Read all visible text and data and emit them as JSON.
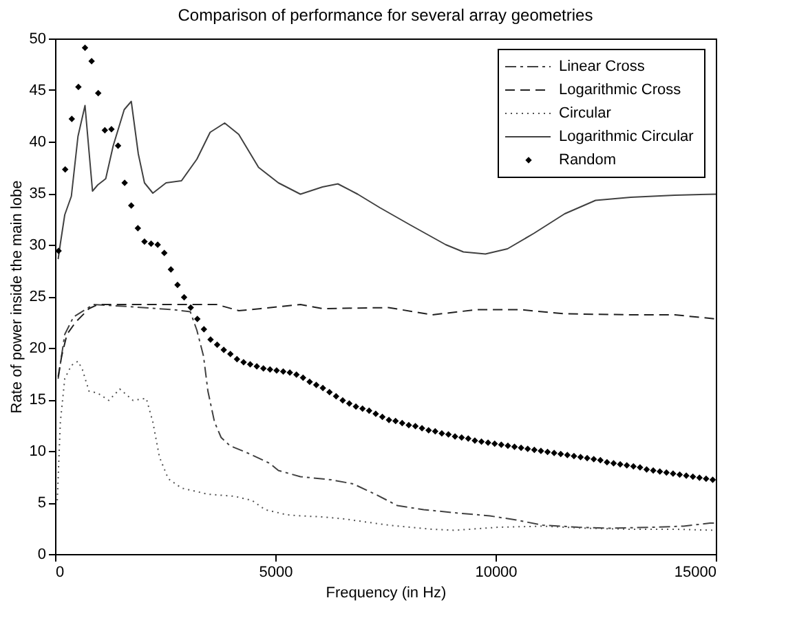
{
  "chart_data": {
    "type": "line",
    "title": "Comparison of performance for several array geometries",
    "xlabel": "Frequency (in Hz)",
    "ylabel": "Rate of power inside the main lobe",
    "xlim": [
      0,
      15000
    ],
    "xticks": [
      0,
      5000,
      10000,
      15000
    ],
    "ylim": [
      0,
      50
    ],
    "yticks": [
      0,
      5,
      10,
      15,
      20,
      25,
      30,
      35,
      40,
      45,
      50
    ],
    "grid": false,
    "legend": "top right",
    "series": [
      {
        "name": "Linear Cross",
        "type": "line",
        "line_style": "dashdot",
        "color": "#404040",
        "x": [
          70,
          220,
          420,
          870,
          1670,
          2670,
          3070,
          3220,
          3370,
          3470,
          3620,
          3770,
          3970,
          4370,
          4870,
          5070,
          5570,
          6270,
          6770,
          7270,
          7770,
          8370,
          9070,
          9870,
          10470,
          11070,
          11870,
          12570,
          13570,
          14270,
          14870,
          15000
        ],
        "values": [
          17.0,
          21.3,
          23.0,
          24.2,
          24.0,
          23.7,
          23.5,
          21.7,
          19.2,
          15.8,
          12.8,
          11.3,
          10.5,
          9.8,
          8.8,
          8.1,
          7.5,
          7.2,
          6.8,
          5.8,
          4.7,
          4.3,
          4.0,
          3.7,
          3.3,
          2.8,
          2.6,
          2.5,
          2.6,
          2.7,
          3.0,
          3.0
        ]
      },
      {
        "name": "Logarithmic Cross",
        "type": "line",
        "line_style": "dashed",
        "color": "#202020",
        "x": [
          70,
          150,
          270,
          470,
          770,
          970,
          1670,
          2670,
          3670,
          4170,
          4670,
          5570,
          6070,
          7570,
          8570,
          9570,
          10570,
          11570,
          13070,
          14070,
          15000
        ],
        "values": [
          17.2,
          19.2,
          21.3,
          22.5,
          23.8,
          24.2,
          24.2,
          24.2,
          24.2,
          23.6,
          23.8,
          24.2,
          23.8,
          23.9,
          23.2,
          23.7,
          23.7,
          23.3,
          23.2,
          23.2,
          22.8
        ]
      },
      {
        "name": "Circular",
        "type": "line",
        "line_style": "dotted",
        "color": "#505050",
        "x": [
          50,
          120,
          220,
          370,
          520,
          620,
          770,
          970,
          1220,
          1470,
          1770,
          2070,
          2220,
          2370,
          2570,
          2870,
          3470,
          4070,
          4470,
          4770,
          5270,
          5570,
          6070,
          6570,
          7570,
          8570,
          9070,
          10070,
          11070,
          12070,
          13070,
          14070,
          15000
        ],
        "values": [
          5.2,
          12.8,
          17.0,
          18.3,
          18.7,
          17.9,
          15.8,
          15.6,
          14.9,
          16.0,
          14.9,
          15.1,
          12.8,
          9.4,
          7.3,
          6.4,
          5.8,
          5.6,
          5.2,
          4.3,
          3.8,
          3.7,
          3.6,
          3.4,
          2.8,
          2.4,
          2.3,
          2.6,
          2.7,
          2.5,
          2.4,
          2.4,
          2.3
        ]
      },
      {
        "name": "Logarithmic Circular",
        "type": "line",
        "line_style": "solid",
        "color": "#404040",
        "x": [
          70,
          120,
          220,
          370,
          520,
          680,
          850,
          970,
          1150,
          1320,
          1570,
          1730,
          1890,
          2030,
          2220,
          2520,
          2870,
          3220,
          3520,
          3850,
          4170,
          4620,
          5070,
          5570,
          6070,
          6420,
          6870,
          7370,
          8070,
          8870,
          9270,
          9770,
          10270,
          10870,
          11570,
          12270,
          13070,
          14070,
          15000
        ],
        "values": [
          28.6,
          30.1,
          32.9,
          34.7,
          40.5,
          43.5,
          35.2,
          35.8,
          36.4,
          39.6,
          43.1,
          43.9,
          38.8,
          36.0,
          35.0,
          36.0,
          36.2,
          38.3,
          40.9,
          41.8,
          40.7,
          37.5,
          36.0,
          34.9,
          35.6,
          35.9,
          34.9,
          33.6,
          31.9,
          30.0,
          29.3,
          29.1,
          29.6,
          31.1,
          33.0,
          34.3,
          34.6,
          34.8,
          34.9
        ]
      },
      {
        "name": "Random",
        "type": "scatter",
        "marker": "diamond",
        "color": "#000000",
        "x": [
          80,
          230,
          380,
          530,
          680,
          830,
          980,
          1130,
          1280,
          1430,
          1580,
          1730,
          1880,
          2030,
          2180,
          2330,
          2480,
          2630,
          2780,
          2930,
          3080,
          3230,
          3380,
          3530,
          3680,
          3830,
          3980,
          4130,
          4280,
          4430,
          4580,
          4730,
          4880,
          5030,
          5180,
          5330,
          5480,
          5630,
          5780,
          5930,
          6080,
          6230,
          6380,
          6530,
          6680,
          6830,
          6980,
          7130,
          7280,
          7430,
          7580,
          7730,
          7880,
          8030,
          8180,
          8330,
          8480,
          8630,
          8780,
          8930,
          9080,
          9230,
          9380,
          9530,
          9680,
          9830,
          9980,
          10130,
          10280,
          10430,
          10580,
          10730,
          10880,
          11030,
          11180,
          11330,
          11480,
          11630,
          11780,
          11930,
          12080,
          12230,
          12380,
          12530,
          12680,
          12830,
          12980,
          13130,
          13280,
          13430,
          13580,
          13730,
          13880,
          14030,
          14180,
          14330,
          14480,
          14630,
          14780,
          14930
        ],
        "values": [
          29.4,
          37.3,
          42.2,
          45.3,
          49.1,
          47.8,
          44.7,
          41.1,
          41.2,
          39.6,
          36.0,
          33.8,
          31.6,
          30.3,
          30.1,
          30.0,
          29.2,
          27.6,
          26.1,
          24.9,
          23.9,
          22.8,
          21.8,
          20.8,
          20.3,
          19.8,
          19.4,
          18.9,
          18.6,
          18.4,
          18.2,
          18.0,
          17.9,
          17.8,
          17.7,
          17.6,
          17.4,
          17.1,
          16.7,
          16.4,
          16.1,
          15.7,
          15.3,
          14.9,
          14.6,
          14.3,
          14.1,
          13.9,
          13.6,
          13.3,
          13.0,
          12.9,
          12.7,
          12.5,
          12.4,
          12.2,
          12.0,
          11.9,
          11.7,
          11.6,
          11.4,
          11.3,
          11.2,
          11.0,
          10.9,
          10.8,
          10.7,
          10.6,
          10.5,
          10.4,
          10.3,
          10.2,
          10.1,
          10.0,
          9.9,
          9.8,
          9.7,
          9.6,
          9.5,
          9.4,
          9.3,
          9.2,
          9.1,
          8.9,
          8.8,
          8.7,
          8.6,
          8.5,
          8.4,
          8.2,
          8.1,
          8.0,
          7.9,
          7.8,
          7.7,
          7.6,
          7.5,
          7.4,
          7.3,
          7.2
        ]
      }
    ]
  }
}
